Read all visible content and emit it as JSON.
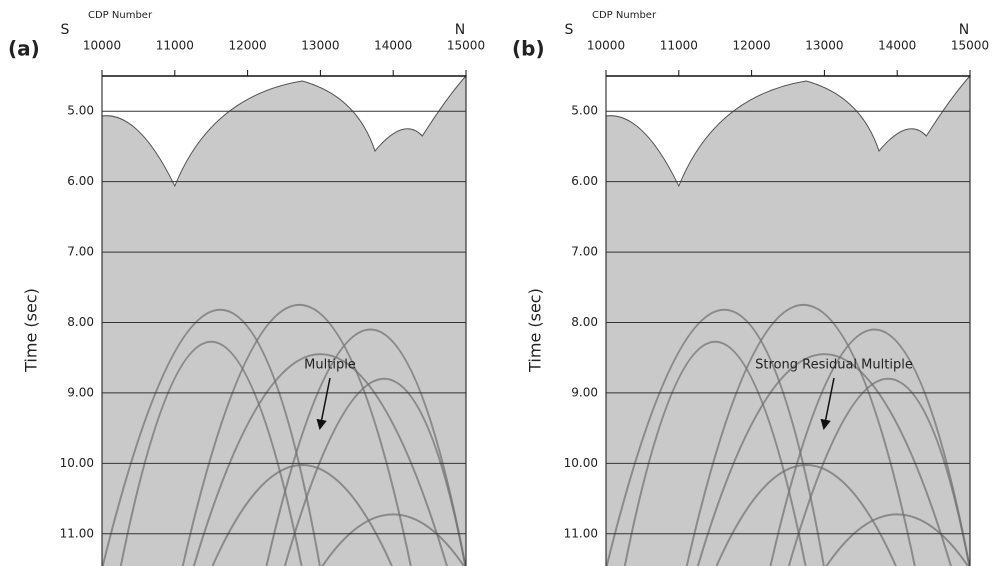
{
  "chart_data": [
    {
      "type": "seismic",
      "panel_label": "(a)",
      "x_label": "CDP Number",
      "y_label": "Time (sec)",
      "direction_left": "S",
      "direction_right": "N",
      "annotation": "Multiple",
      "xlim": [
        10000,
        15000
      ],
      "xticks": [
        10000,
        11000,
        12000,
        13000,
        14000,
        15000
      ],
      "ylim": [
        4.5,
        11.5
      ],
      "yticks": [
        {
          "value": 5,
          "label": "5.00"
        },
        {
          "value": 6,
          "label": "6.00"
        },
        {
          "value": 7,
          "label": "7.00"
        },
        {
          "value": 8,
          "label": "8.00"
        },
        {
          "value": 9,
          "label": "9.00"
        },
        {
          "value": 10,
          "label": "10.00"
        },
        {
          "value": 11,
          "label": "11.00"
        }
      ],
      "grid": true
    },
    {
      "type": "seismic",
      "panel_label": "(b)",
      "x_label": "CDP Number",
      "y_label": "Time (sec)",
      "direction_left": "S",
      "direction_right": "N",
      "annotation": "Strong Residual Multiple",
      "xlim": [
        10000,
        15000
      ],
      "xticks": [
        10000,
        11000,
        12000,
        13000,
        14000,
        15000
      ],
      "ylim": [
        4.5,
        11.5
      ],
      "yticks": [
        {
          "value": 5,
          "label": "5.00"
        },
        {
          "value": 6,
          "label": "6.00"
        },
        {
          "value": 7,
          "label": "7.00"
        },
        {
          "value": 8,
          "label": "8.00"
        },
        {
          "value": 9,
          "label": "9.00"
        },
        {
          "value": 10,
          "label": "10.00"
        },
        {
          "value": 11,
          "label": "11.00"
        }
      ],
      "grid": true
    }
  ]
}
